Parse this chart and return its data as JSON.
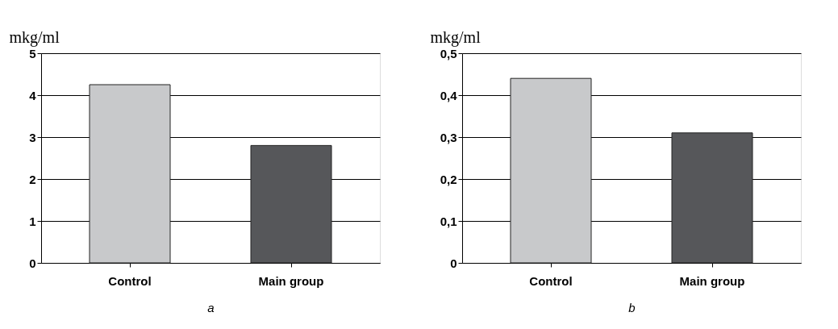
{
  "chart_data": [
    {
      "type": "bar",
      "ylabel": "mkg/ml",
      "xlabel": "a",
      "categories": [
        "Control",
        "Main group"
      ],
      "values": [
        4.25,
        2.8
      ],
      "colors": [
        "#c8c9cb",
        "#56575a"
      ],
      "ylim": [
        0,
        5
      ],
      "yticks": [
        0,
        1,
        2,
        3,
        4,
        5
      ],
      "grid": "y"
    },
    {
      "type": "bar",
      "ylabel": "mkg/ml",
      "xlabel": "b",
      "categories": [
        "Control",
        "Main group"
      ],
      "values": [
        0.44,
        0.31
      ],
      "colors": [
        "#c8c9cb",
        "#56575a"
      ],
      "ylim": [
        0,
        0.5
      ],
      "yticks": [
        0,
        {
          "value": 0.1,
          "label": "0,1"
        },
        {
          "value": 0.2,
          "label": "0,2"
        },
        {
          "value": 0.3,
          "label": "0,3"
        },
        {
          "value": 0.4,
          "label": "0,4"
        },
        {
          "value": 0.5,
          "label": "0,5"
        }
      ],
      "grid": "y"
    }
  ]
}
